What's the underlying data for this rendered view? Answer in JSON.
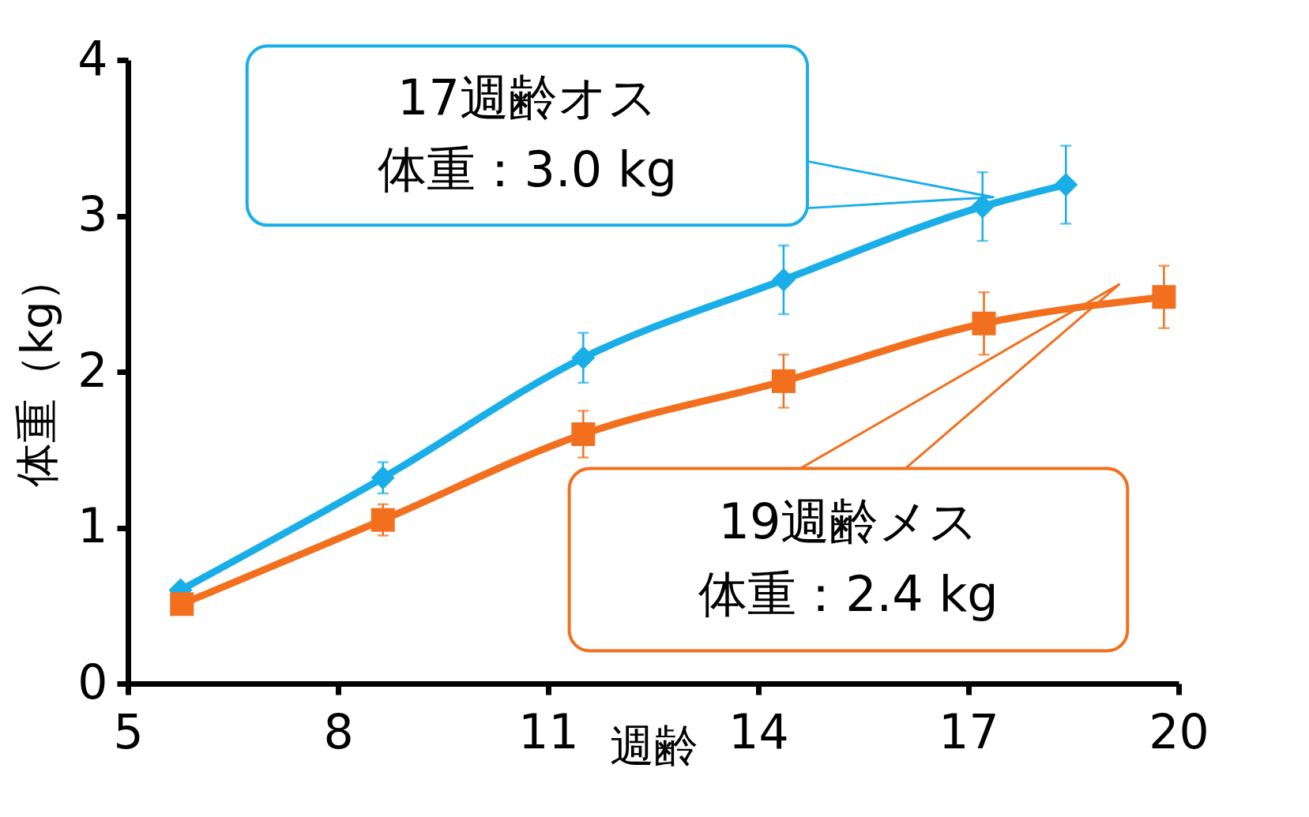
{
  "chart_data": {
    "type": "line",
    "xlabel": "週齢",
    "ylabel": "体重（kg）",
    "xlim": [
      5,
      20
    ],
    "xticks": [
      5,
      8,
      11,
      14,
      17,
      20
    ],
    "ylim": [
      0,
      4
    ],
    "yticks": [
      0,
      1,
      2,
      3,
      4
    ],
    "grid": false,
    "series": [
      {
        "color": "#1aaee8",
        "marker": "diamond",
        "x": [
          5.75,
          8.64,
          11.5,
          14.36,
          17.2,
          18.39
        ],
        "values": [
          0.6,
          1.32,
          2.09,
          2.59,
          3.06,
          3.2
        ],
        "errors": [
          0.03,
          0.1,
          0.16,
          0.22,
          0.22,
          0.25
        ]
      },
      {
        "color": "#f26f1d",
        "marker": "square",
        "x": [
          5.77,
          8.64,
          11.5,
          14.36,
          17.22,
          19.79
        ],
        "values": [
          0.51,
          1.05,
          1.6,
          1.94,
          2.31,
          2.48
        ],
        "errors": [
          0.03,
          0.1,
          0.15,
          0.17,
          0.2,
          0.2
        ]
      }
    ],
    "annotations": [
      "17週齢オス",
      "体重：3.0 kg",
      "19週齢メス",
      "体重：2.4 kg"
    ]
  }
}
